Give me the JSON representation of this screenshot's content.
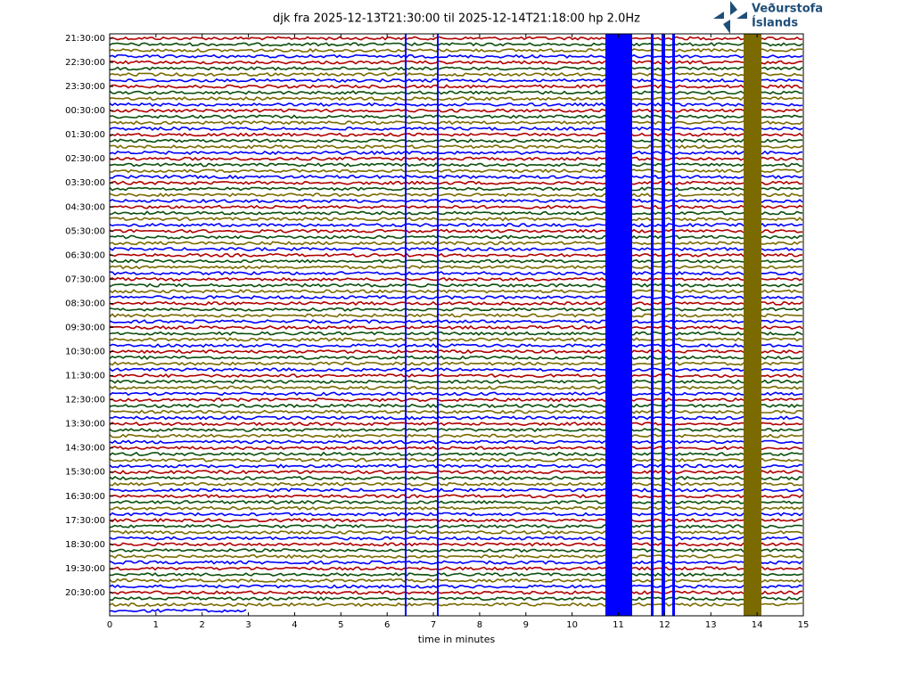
{
  "chart_data": {
    "type": "helicorder",
    "title": "djk fra 2025-12-13T21:30:00 til 2025-12-14T21:18:00 hp 2.0Hz",
    "logo": [
      "Veðurstofa",
      "Íslands"
    ],
    "xlabel": "time in minutes",
    "xlim": [
      0,
      15
    ],
    "xticks": [
      0,
      1,
      2,
      3,
      4,
      5,
      6,
      7,
      8,
      9,
      10,
      11,
      12,
      13,
      14,
      15
    ],
    "row_labels": [
      "21:30:00",
      "22:30:00",
      "23:30:00",
      "00:30:00",
      "01:30:00",
      "02:30:00",
      "03:30:00",
      "04:30:00",
      "05:30:00",
      "06:30:00",
      "07:30:00",
      "08:30:00",
      "09:30:00",
      "10:30:00",
      "11:30:00",
      "12:30:00",
      "13:30:00",
      "14:30:00",
      "15:30:00",
      "16:30:00",
      "17:30:00",
      "18:30:00",
      "19:30:00",
      "20:30:00"
    ],
    "trace_colors": [
      "#b00000",
      "#0b4f0b",
      "#7a6a00",
      "#0000ff"
    ]
  }
}
